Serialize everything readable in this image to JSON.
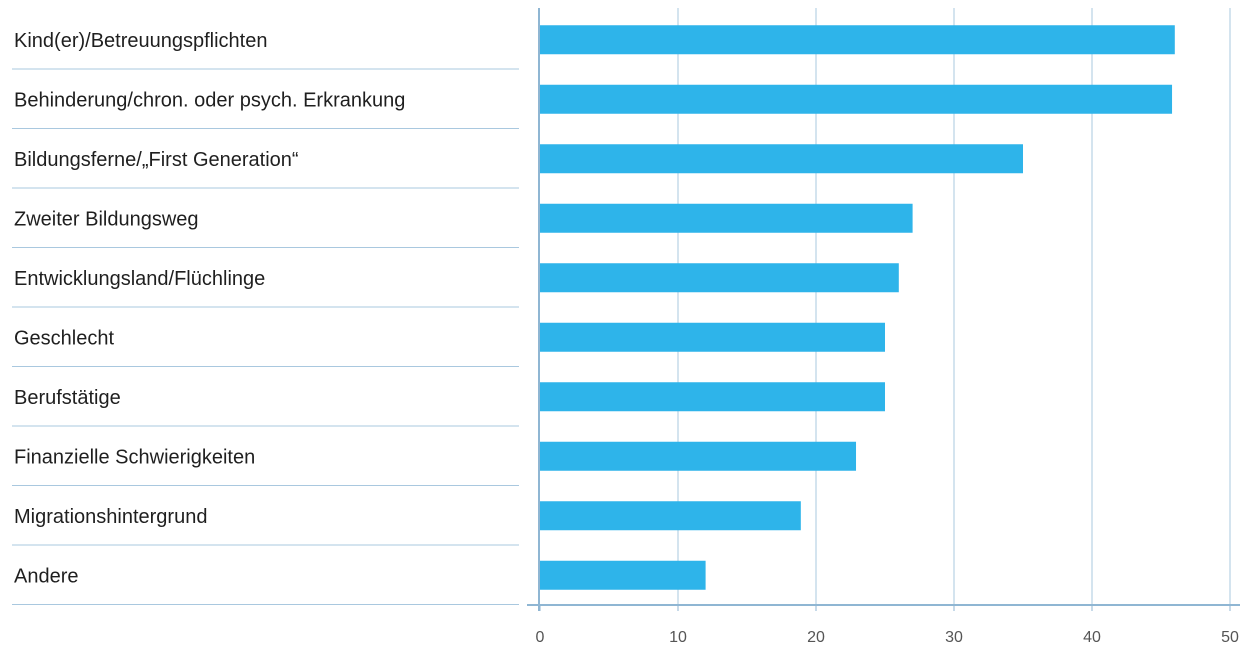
{
  "chart_data": {
    "type": "bar",
    "orientation": "horizontal",
    "title": "",
    "xlabel": "",
    "ylabel": "",
    "categories": [
      "Kind(er)/Betreuungspflichten",
      "Behinderung/chron. oder psych. Erkrankung",
      "Bildungsferne/„First Generation“",
      "Zweiter Bildungsweg",
      "Entwicklungsland/Flüchlinge",
      "Geschlecht",
      "Berufstätige",
      "Finanzielle Schwierigkeiten",
      "Migrationshintergrund",
      "Andere"
    ],
    "values": [
      46,
      45.8,
      35,
      27,
      26,
      25,
      25,
      22.9,
      18.9,
      12
    ],
    "xlim": [
      0,
      50
    ],
    "xticks": [
      0,
      10,
      20,
      30,
      40,
      50
    ],
    "xtick_labels": [
      "0",
      "10",
      "20",
      "30",
      "40",
      "50"
    ],
    "grid": true,
    "legend": "none",
    "colors": {
      "bar": "#2eb4ea",
      "grid": "#a9c8df",
      "axis": "#8fb6d3",
      "separator": "#a9c8df",
      "label_text": "#1f1f1f",
      "tick_text": "#555555"
    }
  }
}
